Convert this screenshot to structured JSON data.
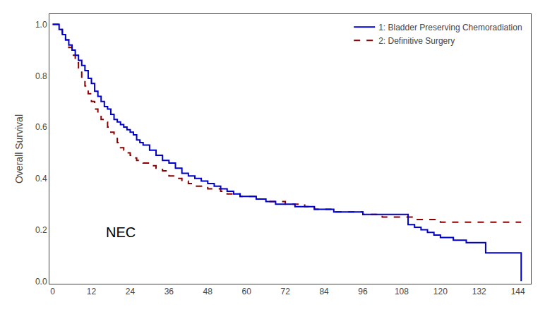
{
  "chart_data": {
    "type": "step",
    "ylabel": "Overall Survival",
    "xlim": [
      -1,
      148
    ],
    "ylim": [
      -0.01,
      1.04
    ],
    "xticks": [
      0,
      12,
      24,
      36,
      48,
      60,
      72,
      84,
      96,
      108,
      120,
      132,
      144
    ],
    "yticks": [
      {
        "value": 0.0,
        "label": "0.0"
      },
      {
        "value": 0.2,
        "label": "0.2"
      },
      {
        "value": 0.4,
        "label": "0.4"
      },
      {
        "value": 0.6,
        "label": "0.6"
      },
      {
        "value": 0.8,
        "label": "0.8"
      },
      {
        "value": 1.0,
        "label": "1.0"
      }
    ],
    "grid": false,
    "legend": "upper right",
    "annotations": [
      {
        "text": "NEC",
        "x": 16,
        "y": 0.155
      }
    ],
    "series": [
      {
        "name": "1: Bladder Preserving Chemoradiation",
        "color": "#0000CC",
        "line_style": "solid",
        "x": [
          0,
          2,
          3,
          4,
          5,
          6,
          7,
          8,
          9,
          10,
          11,
          12,
          13,
          14,
          15,
          16,
          17,
          18,
          19,
          20,
          21,
          22,
          23,
          24,
          25,
          26,
          27,
          28,
          30,
          32,
          34,
          36,
          38,
          40,
          42,
          44,
          46,
          48,
          50,
          52,
          54,
          56,
          58,
          60,
          63,
          66,
          69,
          72,
          75,
          78,
          81,
          84,
          87,
          90,
          93,
          96,
          99,
          102,
          105,
          108,
          110,
          112,
          114,
          116,
          118,
          120,
          121,
          122,
          124,
          126,
          128,
          130,
          132,
          134,
          144,
          145
        ],
        "values": [
          1.0,
          0.98,
          0.96,
          0.94,
          0.92,
          0.9,
          0.88,
          0.86,
          0.84,
          0.82,
          0.79,
          0.77,
          0.74,
          0.72,
          0.7,
          0.68,
          0.67,
          0.65,
          0.63,
          0.62,
          0.61,
          0.6,
          0.59,
          0.58,
          0.57,
          0.55,
          0.54,
          0.53,
          0.51,
          0.49,
          0.47,
          0.46,
          0.44,
          0.42,
          0.41,
          0.4,
          0.39,
          0.38,
          0.37,
          0.36,
          0.35,
          0.34,
          0.33,
          0.33,
          0.32,
          0.31,
          0.3,
          0.3,
          0.29,
          0.29,
          0.28,
          0.28,
          0.27,
          0.27,
          0.27,
          0.26,
          0.26,
          0.26,
          0.26,
          0.26,
          0.22,
          0.21,
          0.2,
          0.19,
          0.18,
          0.17,
          0.17,
          0.17,
          0.16,
          0.16,
          0.15,
          0.15,
          0.15,
          0.11,
          0.11,
          0.0
        ]
      },
      {
        "name": "2: Definitive Surgery",
        "color": "#8B0000",
        "line_style": "dashed",
        "x": [
          0,
          2,
          3,
          4,
          5,
          6,
          7,
          8,
          9,
          10,
          11,
          12,
          13,
          14,
          15,
          16,
          17,
          18,
          19,
          20,
          21,
          22,
          23,
          24,
          25,
          26,
          28,
          30,
          32,
          34,
          36,
          38,
          40,
          42,
          44,
          46,
          48,
          50,
          52,
          54,
          56,
          58,
          60,
          63,
          66,
          69,
          72,
          75,
          78,
          81,
          84,
          87,
          90,
          93,
          96,
          99,
          102,
          105,
          108,
          112,
          116,
          120,
          124,
          128,
          132,
          136,
          140,
          145
        ],
        "values": [
          1.0,
          0.98,
          0.96,
          0.94,
          0.91,
          0.88,
          0.85,
          0.82,
          0.79,
          0.76,
          0.73,
          0.7,
          0.67,
          0.65,
          0.63,
          0.62,
          0.6,
          0.58,
          0.56,
          0.54,
          0.52,
          0.51,
          0.5,
          0.49,
          0.48,
          0.47,
          0.46,
          0.45,
          0.44,
          0.43,
          0.41,
          0.4,
          0.39,
          0.38,
          0.37,
          0.37,
          0.36,
          0.36,
          0.35,
          0.34,
          0.34,
          0.33,
          0.33,
          0.32,
          0.31,
          0.31,
          0.3,
          0.3,
          0.29,
          0.28,
          0.28,
          0.27,
          0.27,
          0.27,
          0.26,
          0.26,
          0.25,
          0.25,
          0.25,
          0.24,
          0.24,
          0.23,
          0.23,
          0.23,
          0.23,
          0.23,
          0.23,
          0.23
        ]
      }
    ]
  }
}
